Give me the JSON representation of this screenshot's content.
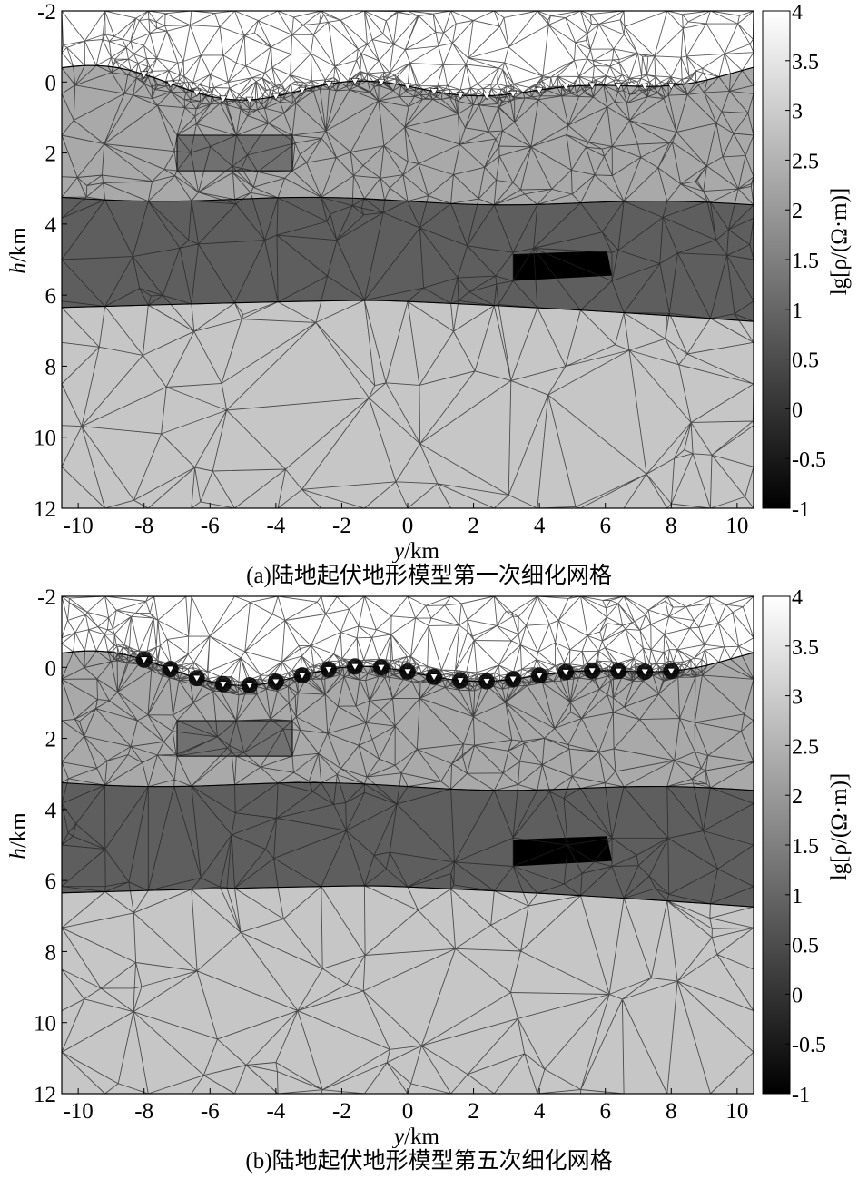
{
  "colors": {
    "air": "#ffffff",
    "overburden": "#a9a9a9",
    "upper_block": "#707070",
    "middle_layer": "#5e5e5e",
    "conductive_block": "#000000",
    "basement": "#c6c6c6",
    "mesh_line": "#222222",
    "station_marker": "#ffffff"
  },
  "colorbar": {
    "label": "lg[ρ/(Ω·m)]",
    "ticks": [
      "4",
      "3.5",
      "3",
      "2.5",
      "2",
      "1.5",
      "1",
      "0.5",
      "0",
      "-0.5",
      "-1"
    ],
    "range": [
      -1,
      4
    ]
  },
  "axes": {
    "xlabel_var": "y",
    "xlabel_unit": "/km",
    "ylabel_var": "h",
    "ylabel_unit": "/km",
    "x_ticks": [
      "-10",
      "-8",
      "-6",
      "-4",
      "-2",
      "0",
      "2",
      "4",
      "6",
      "8",
      "10"
    ],
    "y_ticks": [
      "-2",
      "0",
      "2",
      "4",
      "6",
      "8",
      "10",
      "12"
    ],
    "x_range": [
      -10.5,
      10.5
    ],
    "y_range": [
      -2,
      12
    ]
  },
  "model": {
    "stations_y_km": [
      -8,
      -7.2,
      -6.4,
      -5.6,
      -4.8,
      -4,
      -3.2,
      -2.4,
      -1.6,
      -0.8,
      0,
      0.8,
      1.6,
      2.4,
      3.2,
      4,
      4.8,
      5.6,
      6.4,
      7.2,
      8
    ],
    "upper_block": {
      "y": [
        -7,
        -3.5
      ],
      "h": [
        1.5,
        2.5
      ],
      "lg_rho": 1.2
    },
    "conductive_block": {
      "y": [
        3.2,
        6.2
      ],
      "h": [
        4.8,
        5.6
      ],
      "lg_rho": -1
    },
    "middle_layer_lg_rho": 1,
    "overburden_lg_rho": 2,
    "basement_lg_rho": 3
  },
  "panels": [
    {
      "caption": "(a)陆地起伏地形模型第一次细化网格",
      "refinement": 1
    },
    {
      "caption": "(b)陆地起伏地形模型第五次细化网格",
      "refinement": 5
    }
  ]
}
